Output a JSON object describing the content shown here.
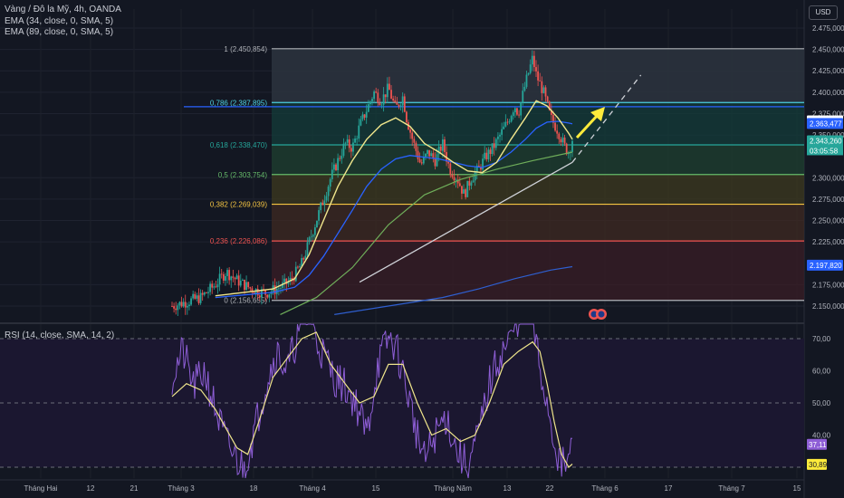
{
  "legend": {
    "symbol": "Vàng / Đô la Mỹ, 4h, OANDA",
    "ema1": "EMA (34, close, 0, SMA, 5)",
    "ema2": "EMA (89, close, 0, SMA, 5)"
  },
  "currency": "USD",
  "rsi_label": "RSI (14, close, SMA, 14, 2)",
  "colors": {
    "background": "#131722",
    "up": "#26a69a",
    "down": "#ef5350",
    "ema34": "#f0e68c",
    "ema89": "#2962ff",
    "rsi": "#8e5ed6",
    "rsi_ma": "#f0e68c",
    "arrow": "#ffeb3b"
  },
  "chart_data": [
    {
      "type": "candlestick",
      "title": "Vàng / Đô la Mỹ, 4h, OANDA",
      "ylim": [
        2150000,
        2475000
      ],
      "y_ticks": [
        2475000,
        2450000,
        2425000,
        2400000,
        2375000,
        2350000,
        2300000,
        2275000,
        2250000,
        2225000,
        2175000,
        2150000
      ],
      "y_tick_labels": [
        "2.475,000",
        "2.450,000",
        "2.425,000",
        "2.400,000",
        "2.375,000",
        "2.350,000",
        "2.300,000",
        "2.275,000",
        "2.250,000",
        "2.225,000",
        "2.175,000",
        "2.150,000"
      ],
      "x_tick_labels": [
        "Tháng Hai",
        "12",
        "21",
        "Tháng 3",
        "18",
        "Tháng 4",
        "15",
        "Tháng Năm",
        "13",
        "22",
        "Tháng 6",
        "17",
        "Tháng 7",
        "15"
      ],
      "price_path": [
        [
          0,
          2150
        ],
        [
          8,
          2160
        ],
        [
          12,
          2175
        ],
        [
          15,
          2190
        ],
        [
          18,
          2180
        ],
        [
          22,
          2170
        ],
        [
          26,
          2165
        ],
        [
          30,
          2172
        ],
        [
          33,
          2180
        ],
        [
          36,
          2200
        ],
        [
          38,
          2225
        ],
        [
          40,
          2250
        ],
        [
          42,
          2275
        ],
        [
          44,
          2300
        ],
        [
          46,
          2320
        ],
        [
          48,
          2340
        ],
        [
          50,
          2335
        ],
        [
          52,
          2360
        ],
        [
          54,
          2380
        ],
        [
          56,
          2400
        ],
        [
          58,
          2390
        ],
        [
          60,
          2405
        ],
        [
          62,
          2380
        ],
        [
          64,
          2395
        ],
        [
          65,
          2370
        ],
        [
          67,
          2340
        ],
        [
          69,
          2315
        ],
        [
          71,
          2330
        ],
        [
          73,
          2320
        ],
        [
          75,
          2340
        ],
        [
          77,
          2310
        ],
        [
          79,
          2300
        ],
        [
          81,
          2280
        ],
        [
          83,
          2300
        ],
        [
          85,
          2310
        ],
        [
          87,
          2325
        ],
        [
          89,
          2335
        ],
        [
          91,
          2350
        ],
        [
          93,
          2365
        ],
        [
          95,
          2385
        ],
        [
          96,
          2375
        ],
        [
          98,
          2410
        ],
        [
          100,
          2440
        ],
        [
          101,
          2420
        ],
        [
          103,
          2400
        ],
        [
          105,
          2370
        ],
        [
          107,
          2355
        ],
        [
          109,
          2335
        ],
        [
          110,
          2330
        ],
        [
          111,
          2345
        ]
      ],
      "ema34_path": [
        [
          12,
          2162
        ],
        [
          20,
          2166
        ],
        [
          28,
          2170
        ],
        [
          34,
          2182
        ],
        [
          38,
          2210
        ],
        [
          42,
          2250
        ],
        [
          46,
          2290
        ],
        [
          50,
          2320
        ],
        [
          54,
          2345
        ],
        [
          58,
          2362
        ],
        [
          62,
          2370
        ],
        [
          66,
          2360
        ],
        [
          70,
          2340
        ],
        [
          74,
          2330
        ],
        [
          78,
          2318
        ],
        [
          82,
          2308
        ],
        [
          86,
          2306
        ],
        [
          90,
          2318
        ],
        [
          94,
          2345
        ],
        [
          98,
          2370
        ],
        [
          101,
          2390
        ],
        [
          104,
          2384
        ],
        [
          107,
          2370
        ],
        [
          110,
          2352
        ],
        [
          111,
          2345
        ]
      ],
      "ema89_path": [
        [
          12,
          2160
        ],
        [
          20,
          2163
        ],
        [
          28,
          2166
        ],
        [
          34,
          2172
        ],
        [
          38,
          2186
        ],
        [
          42,
          2208
        ],
        [
          46,
          2235
        ],
        [
          50,
          2262
        ],
        [
          54,
          2290
        ],
        [
          58,
          2310
        ],
        [
          62,
          2322
        ],
        [
          66,
          2326
        ],
        [
          70,
          2324
        ],
        [
          74,
          2322
        ],
        [
          78,
          2318
        ],
        [
          82,
          2314
        ],
        [
          86,
          2312
        ],
        [
          90,
          2318
        ],
        [
          94,
          2330
        ],
        [
          98,
          2345
        ],
        [
          101,
          2358
        ],
        [
          104,
          2365
        ],
        [
          107,
          2366
        ],
        [
          110,
          2364
        ],
        [
          111,
          2363
        ]
      ],
      "ema_extra_green_path": [
        [
          30,
          2140
        ],
        [
          40,
          2160
        ],
        [
          50,
          2195
        ],
        [
          60,
          2245
        ],
        [
          70,
          2280
        ],
        [
          80,
          2298
        ],
        [
          90,
          2310
        ],
        [
          100,
          2320
        ],
        [
          111,
          2330
        ]
      ],
      "ema_extra_blue_path": [
        [
          45,
          2140
        ],
        [
          60,
          2150
        ],
        [
          75,
          2160
        ],
        [
          85,
          2170
        ],
        [
          95,
          2182
        ],
        [
          105,
          2192
        ],
        [
          111,
          2196
        ]
      ],
      "fib_levels": [
        {
          "label": "1 (2.450,854)",
          "value": 2450854,
          "color": "#b0b3b8"
        },
        {
          "label": "0,786 (2.387,895)",
          "value": 2387895,
          "color": "#4dd0e1"
        },
        {
          "label": "0,618 (2.338,470)",
          "value": 2338470,
          "color": "#26a69a"
        },
        {
          "label": "0,5 (2.303,754)",
          "value": 2303754,
          "color": "#66bb6a"
        },
        {
          "label": "0,382 (2.269,039)",
          "value": 2269039,
          "color": "#f5c542"
        },
        {
          "label": "0,236 (2.226,086)",
          "value": 2226086,
          "color": "#ef5350"
        },
        {
          "label": "0 (2.156,655)",
          "value": 2156655,
          "color": "#b0b3b8"
        }
      ],
      "horizontal_line": 2383000,
      "trendline": [
        [
          52,
          2178
        ],
        [
          111,
          2318
        ],
        [
          130,
          2420
        ]
      ],
      "price_badges": [
        {
          "value": 2366453,
          "text": "2.366,453",
          "bg": "#ffffff",
          "fg": "#131722"
        },
        {
          "value": 2363477,
          "text": "2.363,477",
          "bg": "#2962ff",
          "fg": "#ffffff"
        },
        {
          "value": 2343260,
          "text": "2.343,260",
          "bg": "#26a69a",
          "fg": "#ffffff"
        },
        {
          "value": 2197820,
          "text": "2.197,820",
          "bg": "#2962ff",
          "fg": "#ffffff"
        }
      ],
      "countdown": "03:05:58"
    },
    {
      "type": "line",
      "title": "RSI (14, close, SMA, 14, 2)",
      "ylim": [
        28,
        75
      ],
      "y_ticks": [
        70,
        60,
        50,
        40
      ],
      "y_tick_labels": [
        "70,00",
        "60,00",
        "50,00",
        "40,00"
      ],
      "bands": [
        70,
        50,
        30
      ],
      "rsi_path": [
        [
          0,
          58
        ],
        [
          3,
          66
        ],
        [
          6,
          55
        ],
        [
          9,
          60
        ],
        [
          12,
          48
        ],
        [
          15,
          38
        ],
        [
          18,
          32
        ],
        [
          20,
          30
        ],
        [
          23,
          42
        ],
        [
          26,
          56
        ],
        [
          29,
          66
        ],
        [
          32,
          60
        ],
        [
          35,
          72
        ],
        [
          38,
          78
        ],
        [
          40,
          70
        ],
        [
          42,
          65
        ],
        [
          45,
          58
        ],
        [
          48,
          55
        ],
        [
          51,
          50
        ],
        [
          54,
          40
        ],
        [
          57,
          62
        ],
        [
          60,
          70
        ],
        [
          62,
          68
        ],
        [
          65,
          55
        ],
        [
          68,
          40
        ],
        [
          70,
          32
        ],
        [
          73,
          40
        ],
        [
          76,
          46
        ],
        [
          79,
          35
        ],
        [
          82,
          30
        ],
        [
          85,
          40
        ],
        [
          88,
          56
        ],
        [
          91,
          65
        ],
        [
          94,
          70
        ],
        [
          97,
          80
        ],
        [
          100,
          76
        ],
        [
          102,
          60
        ],
        [
          104,
          50
        ],
        [
          106,
          38
        ],
        [
          108,
          30
        ],
        [
          110,
          32
        ],
        [
          111,
          37
        ]
      ],
      "rsi_ma_path": [
        [
          0,
          52
        ],
        [
          4,
          56
        ],
        [
          8,
          54
        ],
        [
          12,
          48
        ],
        [
          15,
          42
        ],
        [
          18,
          36
        ],
        [
          21,
          34
        ],
        [
          24,
          44
        ],
        [
          28,
          58
        ],
        [
          32,
          64
        ],
        [
          36,
          70
        ],
        [
          40,
          72
        ],
        [
          44,
          62
        ],
        [
          48,
          56
        ],
        [
          52,
          50
        ],
        [
          56,
          52
        ],
        [
          60,
          62
        ],
        [
          64,
          62
        ],
        [
          68,
          50
        ],
        [
          72,
          40
        ],
        [
          76,
          42
        ],
        [
          80,
          38
        ],
        [
          84,
          40
        ],
        [
          88,
          50
        ],
        [
          92,
          62
        ],
        [
          96,
          66
        ],
        [
          100,
          69
        ],
        [
          102,
          66
        ],
        [
          104,
          56
        ],
        [
          106,
          44
        ],
        [
          108,
          34
        ],
        [
          110,
          30
        ],
        [
          111,
          31
        ]
      ],
      "value_badges": [
        {
          "value": 37.11,
          "text": "37,11",
          "bg": "#8e5ed6",
          "fg": "#ffffff"
        },
        {
          "value": 30.89,
          "text": "30,89",
          "bg": "#ffeb3b",
          "fg": "#131722"
        }
      ]
    }
  ]
}
